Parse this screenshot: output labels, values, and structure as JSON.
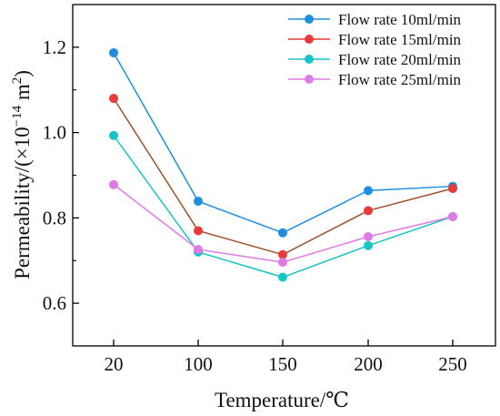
{
  "chart_data": {
    "type": "line",
    "categories": [
      "20",
      "100",
      "150",
      "200",
      "250"
    ],
    "series": [
      {
        "name": "Flow rate 10ml/min",
        "color": "#1f8fe0",
        "values": [
          1.187,
          0.839,
          0.765,
          0.864,
          0.874
        ]
      },
      {
        "name": "Flow rate 15ml/min",
        "color": "#e83a3a",
        "values": [
          1.08,
          0.77,
          0.714,
          0.817,
          0.869
        ]
      },
      {
        "name": "Flow rate 20ml/min",
        "color": "#18c4c4",
        "values": [
          0.993,
          0.72,
          0.661,
          0.735,
          0.803
        ]
      },
      {
        "name": "Flow rate 25ml/min",
        "color": "#e07ae6",
        "values": [
          0.878,
          0.726,
          0.696,
          0.756,
          0.803
        ]
      }
    ],
    "xlabel": "Temperature/℃",
    "ylabel_parts": {
      "main": "Permeability/(×10",
      "exp": "−14",
      "unit": " m",
      "unit_exp": "2",
      "close": ")"
    },
    "yticks": [
      "0.6",
      "0.8",
      "1.0",
      "1.2"
    ],
    "ylim": [
      0.5,
      1.3
    ],
    "grid": false,
    "legend": "top-right",
    "segment_colors": [
      "#1f8fe0",
      "#e83a3a",
      "#a0522d",
      "#18c4c4",
      "#e07ae6"
    ]
  }
}
